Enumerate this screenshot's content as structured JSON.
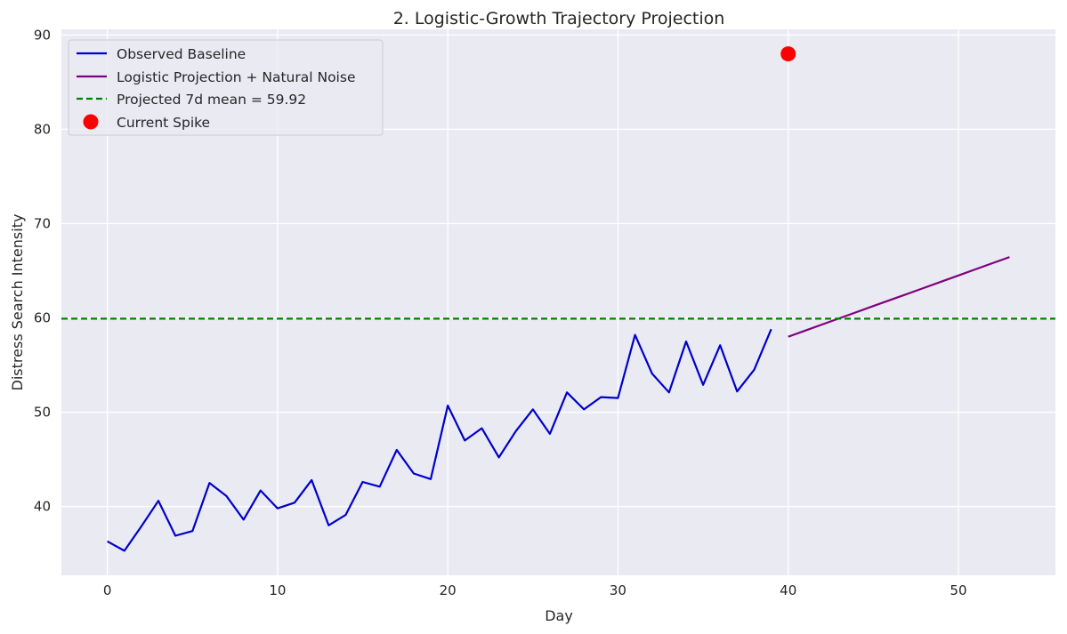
{
  "chart_data": {
    "type": "line",
    "title": "2. Logistic-Growth Trajectory Projection",
    "xlabel": "Day",
    "ylabel": "Distress Search Intensity",
    "xlim": [
      -2.7,
      55.7
    ],
    "ylim": [
      32.7,
      90.6
    ],
    "xticks": [
      0,
      10,
      20,
      30,
      40,
      50
    ],
    "yticks": [
      40,
      50,
      60,
      70,
      80,
      90
    ],
    "grid": true,
    "legend_position": "upper-left",
    "series": [
      {
        "name": "Observed Baseline",
        "kind": "line",
        "color": "#0000cd",
        "x": [
          0,
          1,
          2,
          3,
          4,
          5,
          6,
          7,
          8,
          9,
          10,
          11,
          12,
          13,
          14,
          15,
          16,
          17,
          18,
          19,
          20,
          21,
          22,
          23,
          24,
          25,
          26,
          27,
          28,
          29,
          30,
          31,
          32,
          33,
          34,
          35,
          36,
          37,
          38,
          39
        ],
        "y": [
          36.3,
          35.3,
          37.9,
          40.6,
          36.9,
          37.4,
          42.5,
          41.1,
          38.6,
          41.7,
          39.8,
          40.4,
          42.8,
          38.0,
          39.1,
          42.6,
          42.1,
          46.0,
          43.5,
          42.9,
          50.7,
          47.0,
          48.3,
          45.2,
          48.0,
          50.3,
          47.7,
          52.1,
          50.3,
          51.6,
          51.5,
          58.2,
          54.1,
          52.1,
          57.5,
          52.9,
          57.1,
          52.2,
          54.5,
          58.8
        ]
      },
      {
        "name": "Logistic Projection + Natural Noise",
        "kind": "line",
        "color": "#800080",
        "x": [
          40,
          41,
          42,
          43,
          44,
          45,
          46,
          47,
          48,
          49,
          50,
          51,
          52,
          53
        ],
        "y": [
          58.0,
          58.65,
          59.3,
          59.95,
          60.6,
          61.25,
          61.9,
          62.55,
          63.2,
          63.85,
          64.5,
          65.15,
          65.8,
          66.45
        ]
      },
      {
        "name": "Projected 7d mean = 59.92",
        "kind": "hline",
        "color": "#008000",
        "y": 59.92
      },
      {
        "name": "Current Spike",
        "kind": "scatter",
        "color": "#ff0000",
        "x": [
          40
        ],
        "y": [
          88.0
        ]
      }
    ]
  }
}
